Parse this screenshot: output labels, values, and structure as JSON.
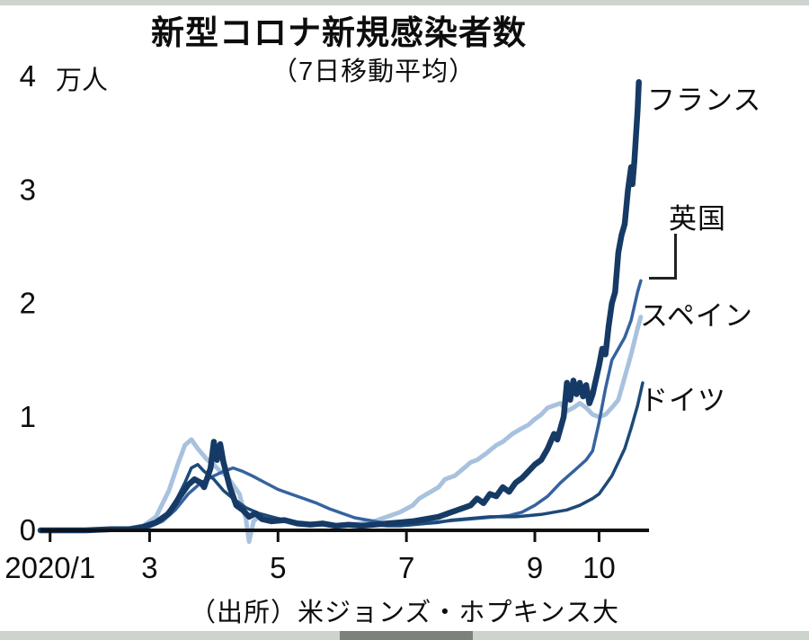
{
  "page": {
    "background": "#ffffff",
    "edge_strip_color": "#cdd3cd",
    "text_color": "#0d0d0d"
  },
  "chart": {
    "title": "新型コロナ新規感染者数",
    "subtitle": "（7日移動平均）",
    "unit": "万人",
    "source": "（出所）米ジョンズ・ホプキンス大",
    "y_ticks": [
      4,
      3,
      2,
      1,
      0
    ],
    "x_ticks": [
      {
        "m": 1.45,
        "label": "2020/1"
      },
      {
        "m": 3,
        "label": "3"
      },
      {
        "m": 5,
        "label": "5"
      },
      {
        "m": 7,
        "label": "7"
      },
      {
        "m": 9,
        "label": "9"
      },
      {
        "m": 10,
        "label": "10"
      }
    ],
    "axis_color": "#111111"
  },
  "chart_data": {
    "type": "line",
    "title": "新型コロナ新規感染者数（7日移動平均）",
    "ylabel": "万人",
    "ylim": [
      0,
      4
    ],
    "x_unit": "month of 2020",
    "xlim": [
      1.3,
      10.75
    ],
    "grid": false,
    "legend_position": "right-of-line-ends",
    "series": [
      {
        "name": "フランス",
        "color": "#163a66",
        "stroke_width": 6.5,
        "z": 4,
        "points": [
          [
            1.3,
            0
          ],
          [
            1.6,
            0
          ],
          [
            2.0,
            0
          ],
          [
            2.4,
            0.01
          ],
          [
            2.7,
            0.01
          ],
          [
            2.9,
            0.03
          ],
          [
            3.1,
            0.07
          ],
          [
            3.3,
            0.15
          ],
          [
            3.45,
            0.28
          ],
          [
            3.6,
            0.4
          ],
          [
            3.7,
            0.45
          ],
          [
            3.8,
            0.42
          ],
          [
            3.85,
            0.38
          ],
          [
            3.95,
            0.55
          ],
          [
            4.0,
            0.78
          ],
          [
            4.05,
            0.62
          ],
          [
            4.1,
            0.76
          ],
          [
            4.15,
            0.6
          ],
          [
            4.25,
            0.38
          ],
          [
            4.35,
            0.22
          ],
          [
            4.45,
            0.18
          ],
          [
            4.55,
            0.12
          ],
          [
            4.65,
            0.15
          ],
          [
            4.75,
            0.1
          ],
          [
            4.9,
            0.08
          ],
          [
            5.1,
            0.09
          ],
          [
            5.3,
            0.06
          ],
          [
            5.5,
            0.05
          ],
          [
            5.7,
            0.06
          ],
          [
            5.9,
            0.04
          ],
          [
            6.1,
            0.05
          ],
          [
            6.3,
            0.04
          ],
          [
            6.5,
            0.05
          ],
          [
            6.7,
            0.06
          ],
          [
            6.9,
            0.07
          ],
          [
            7.1,
            0.08
          ],
          [
            7.3,
            0.1
          ],
          [
            7.5,
            0.12
          ],
          [
            7.7,
            0.16
          ],
          [
            7.9,
            0.2
          ],
          [
            8.0,
            0.22
          ],
          [
            8.1,
            0.28
          ],
          [
            8.2,
            0.24
          ],
          [
            8.3,
            0.32
          ],
          [
            8.4,
            0.3
          ],
          [
            8.5,
            0.38
          ],
          [
            8.6,
            0.34
          ],
          [
            8.7,
            0.42
          ],
          [
            8.8,
            0.46
          ],
          [
            8.9,
            0.52
          ],
          [
            9.0,
            0.58
          ],
          [
            9.1,
            0.62
          ],
          [
            9.2,
            0.72
          ],
          [
            9.3,
            0.85
          ],
          [
            9.35,
            0.8
          ],
          [
            9.45,
            1.0
          ],
          [
            9.5,
            1.3
          ],
          [
            9.55,
            1.15
          ],
          [
            9.6,
            1.32
          ],
          [
            9.65,
            1.2
          ],
          [
            9.7,
            1.3
          ],
          [
            9.75,
            1.18
          ],
          [
            9.8,
            1.28
          ],
          [
            9.85,
            1.12
          ],
          [
            9.9,
            1.2
          ],
          [
            10.0,
            1.45
          ],
          [
            10.05,
            1.6
          ],
          [
            10.1,
            1.55
          ],
          [
            10.15,
            1.8
          ],
          [
            10.2,
            2.0
          ],
          [
            10.25,
            2.1
          ],
          [
            10.3,
            2.45
          ],
          [
            10.35,
            2.6
          ],
          [
            10.4,
            2.7
          ],
          [
            10.45,
            3.0
          ],
          [
            10.5,
            3.2
          ],
          [
            10.52,
            3.05
          ],
          [
            10.55,
            3.25
          ],
          [
            10.6,
            3.7
          ],
          [
            10.62,
            3.95
          ]
        ]
      },
      {
        "name": "英国",
        "color": "#35639f",
        "stroke_width": 3.5,
        "z": 2,
        "points": [
          [
            1.3,
            0
          ],
          [
            2.0,
            0
          ],
          [
            2.6,
            0.01
          ],
          [
            3.0,
            0.03
          ],
          [
            3.2,
            0.08
          ],
          [
            3.4,
            0.18
          ],
          [
            3.6,
            0.32
          ],
          [
            3.8,
            0.42
          ],
          [
            4.0,
            0.48
          ],
          [
            4.15,
            0.52
          ],
          [
            4.3,
            0.55
          ],
          [
            4.45,
            0.52
          ],
          [
            4.6,
            0.48
          ],
          [
            4.8,
            0.42
          ],
          [
            5.0,
            0.36
          ],
          [
            5.2,
            0.32
          ],
          [
            5.4,
            0.28
          ],
          [
            5.6,
            0.24
          ],
          [
            5.8,
            0.19
          ],
          [
            6.0,
            0.15
          ],
          [
            6.2,
            0.11
          ],
          [
            6.4,
            0.09
          ],
          [
            6.6,
            0.07
          ],
          [
            6.8,
            0.06
          ],
          [
            7.0,
            0.06
          ],
          [
            7.2,
            0.06
          ],
          [
            7.4,
            0.07
          ],
          [
            7.6,
            0.08
          ],
          [
            7.8,
            0.09
          ],
          [
            8.0,
            0.1
          ],
          [
            8.2,
            0.11
          ],
          [
            8.4,
            0.12
          ],
          [
            8.6,
            0.13
          ],
          [
            8.8,
            0.16
          ],
          [
            9.0,
            0.22
          ],
          [
            9.2,
            0.3
          ],
          [
            9.4,
            0.42
          ],
          [
            9.6,
            0.52
          ],
          [
            9.8,
            0.62
          ],
          [
            9.9,
            0.7
          ],
          [
            10.0,
            0.95
          ],
          [
            10.1,
            1.25
          ],
          [
            10.2,
            1.5
          ],
          [
            10.3,
            1.6
          ],
          [
            10.4,
            1.7
          ],
          [
            10.5,
            1.85
          ],
          [
            10.6,
            2.1
          ],
          [
            10.65,
            2.2
          ]
        ]
      },
      {
        "name": "スペイン",
        "color": "#a8c2de",
        "stroke_width": 5,
        "z": 1,
        "points": [
          [
            1.3,
            0
          ],
          [
            2.0,
            0
          ],
          [
            2.6,
            0.01
          ],
          [
            2.9,
            0.04
          ],
          [
            3.1,
            0.12
          ],
          [
            3.3,
            0.35
          ],
          [
            3.45,
            0.6
          ],
          [
            3.55,
            0.75
          ],
          [
            3.65,
            0.8
          ],
          [
            3.75,
            0.72
          ],
          [
            3.9,
            0.62
          ],
          [
            4.0,
            0.58
          ],
          [
            4.1,
            0.52
          ],
          [
            4.2,
            0.48
          ],
          [
            4.3,
            0.4
          ],
          [
            4.4,
            0.32
          ],
          [
            4.5,
            0.1
          ],
          [
            4.55,
            -0.1
          ],
          [
            4.62,
            0.08
          ],
          [
            4.7,
            0.12
          ],
          [
            4.9,
            0.1
          ],
          [
            5.1,
            0.09
          ],
          [
            5.3,
            0.07
          ],
          [
            5.5,
            0.06
          ],
          [
            5.7,
            0.05
          ],
          [
            5.9,
            0.04
          ],
          [
            6.1,
            0.05
          ],
          [
            6.3,
            0.06
          ],
          [
            6.5,
            0.08
          ],
          [
            6.7,
            0.12
          ],
          [
            6.9,
            0.16
          ],
          [
            7.1,
            0.22
          ],
          [
            7.2,
            0.28
          ],
          [
            7.35,
            0.33
          ],
          [
            7.5,
            0.38
          ],
          [
            7.6,
            0.45
          ],
          [
            7.75,
            0.48
          ],
          [
            7.9,
            0.55
          ],
          [
            8.0,
            0.6
          ],
          [
            8.1,
            0.62
          ],
          [
            8.25,
            0.68
          ],
          [
            8.4,
            0.75
          ],
          [
            8.5,
            0.78
          ],
          [
            8.65,
            0.85
          ],
          [
            8.8,
            0.9
          ],
          [
            8.9,
            0.93
          ],
          [
            9.0,
            0.98
          ],
          [
            9.1,
            1.02
          ],
          [
            9.2,
            1.08
          ],
          [
            9.3,
            1.1
          ],
          [
            9.4,
            1.12
          ],
          [
            9.5,
            1.05
          ],
          [
            9.6,
            1.08
          ],
          [
            9.7,
            1.12
          ],
          [
            9.8,
            1.08
          ],
          [
            9.9,
            1.02
          ],
          [
            10.0,
            1.0
          ],
          [
            10.1,
            1.02
          ],
          [
            10.2,
            1.08
          ],
          [
            10.3,
            1.15
          ],
          [
            10.4,
            1.35
          ],
          [
            10.5,
            1.55
          ],
          [
            10.6,
            1.78
          ],
          [
            10.65,
            1.88
          ]
        ]
      },
      {
        "name": "ドイツ",
        "color": "#1d4a78",
        "stroke_width": 3.5,
        "z": 3,
        "points": [
          [
            1.3,
            0
          ],
          [
            2.0,
            0
          ],
          [
            2.6,
            0.01
          ],
          [
            3.0,
            0.04
          ],
          [
            3.2,
            0.1
          ],
          [
            3.4,
            0.25
          ],
          [
            3.55,
            0.42
          ],
          [
            3.65,
            0.55
          ],
          [
            3.75,
            0.58
          ],
          [
            3.85,
            0.52
          ],
          [
            4.0,
            0.45
          ],
          [
            4.15,
            0.35
          ],
          [
            4.3,
            0.28
          ],
          [
            4.5,
            0.2
          ],
          [
            4.7,
            0.15
          ],
          [
            4.9,
            0.12
          ],
          [
            5.1,
            0.09
          ],
          [
            5.3,
            0.07
          ],
          [
            5.5,
            0.06
          ],
          [
            5.7,
            0.05
          ],
          [
            5.9,
            0.04
          ],
          [
            6.1,
            0.04
          ],
          [
            6.3,
            0.04
          ],
          [
            6.5,
            0.05
          ],
          [
            6.7,
            0.04
          ],
          [
            6.9,
            0.04
          ],
          [
            7.1,
            0.05
          ],
          [
            7.3,
            0.06
          ],
          [
            7.5,
            0.07
          ],
          [
            7.7,
            0.09
          ],
          [
            7.9,
            0.1
          ],
          [
            8.1,
            0.11
          ],
          [
            8.3,
            0.12
          ],
          [
            8.5,
            0.12
          ],
          [
            8.7,
            0.12
          ],
          [
            8.9,
            0.13
          ],
          [
            9.1,
            0.14
          ],
          [
            9.3,
            0.16
          ],
          [
            9.5,
            0.18
          ],
          [
            9.7,
            0.22
          ],
          [
            9.9,
            0.28
          ],
          [
            10.0,
            0.32
          ],
          [
            10.1,
            0.4
          ],
          [
            10.2,
            0.48
          ],
          [
            10.3,
            0.6
          ],
          [
            10.4,
            0.72
          ],
          [
            10.5,
            0.9
          ],
          [
            10.6,
            1.1
          ],
          [
            10.68,
            1.3
          ]
        ]
      }
    ]
  }
}
